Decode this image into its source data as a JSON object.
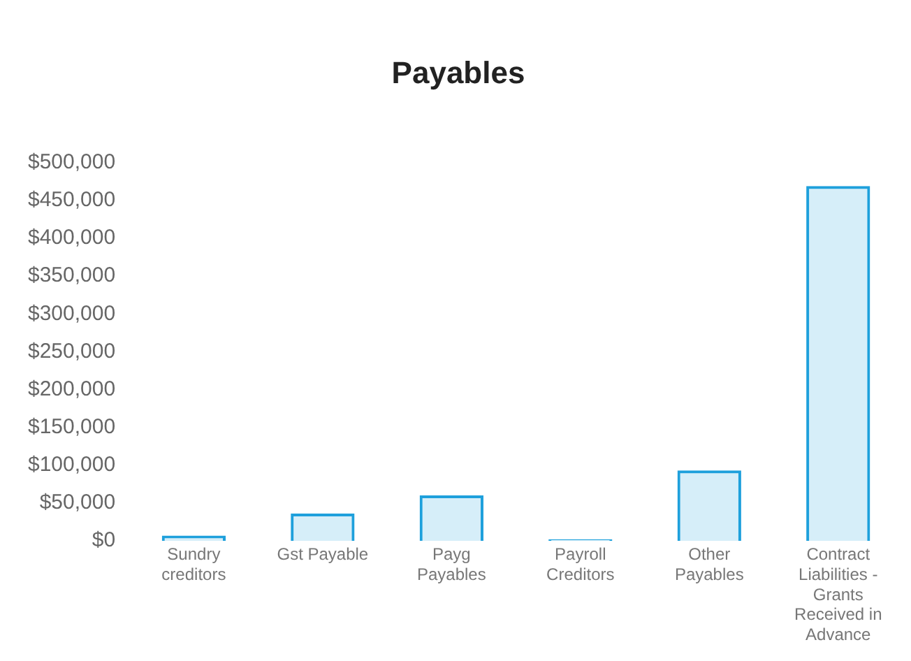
{
  "chart_data": {
    "type": "bar",
    "title": "Payables",
    "categories": [
      "Sundry creditors",
      "Gst Payable",
      "Payg Payables",
      "Payroll Creditors",
      "Other Payables",
      "Contract Liabilities - Grants Received in Advance"
    ],
    "values": [
      7000,
      36000,
      60000,
      2000,
      93000,
      469000
    ],
    "color": "#1ea0dc",
    "ylim": [
      0,
      500000
    ],
    "yticks": [
      {
        "value": 0,
        "label": "$0"
      },
      {
        "value": 50000,
        "label": "$50,000"
      },
      {
        "value": 100000,
        "label": "$100,000"
      },
      {
        "value": 150000,
        "label": "$150,000"
      },
      {
        "value": 200000,
        "label": "$200,000"
      },
      {
        "value": 250000,
        "label": "$250,000"
      },
      {
        "value": 300000,
        "label": "$300,000"
      },
      {
        "value": 350000,
        "label": "$350,000"
      },
      {
        "value": 400000,
        "label": "$400,000"
      },
      {
        "value": 450000,
        "label": "$450,000"
      },
      {
        "value": 500000,
        "label": "$500,000"
      }
    ],
    "grid": false,
    "legend": false
  }
}
